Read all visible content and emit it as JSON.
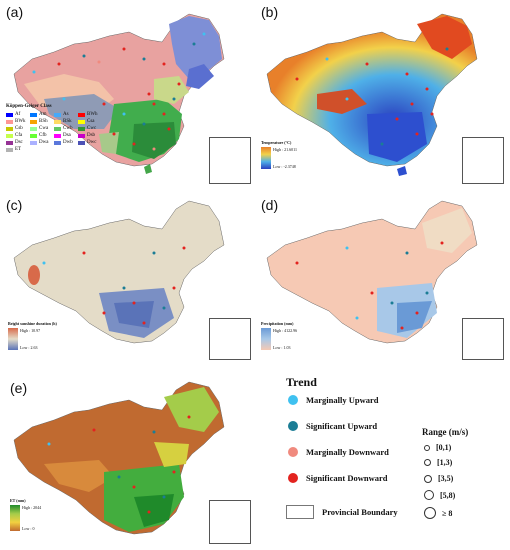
{
  "panels": [
    {
      "label": "(a)",
      "legend_title": "Köppen-Geiger Class",
      "classes": [
        "Af",
        "Am",
        "As",
        "BWh",
        "BWk",
        "BSh",
        "BSk",
        "Csa",
        "Csb",
        "Cwa",
        "Cwb",
        "Cwc",
        "Cfa",
        "Cfb",
        "Dsa",
        "Dsb",
        "Dsc",
        "Dwa",
        "Dwb",
        "Dwc",
        "ET"
      ]
    },
    {
      "label": "(b)",
      "cbar_title": "Temperature (°C)",
      "high": "High : 21.6011",
      "low": "Low : -2.3748"
    },
    {
      "label": "(c)",
      "cbar_title": "Bright sunshine duration (h)",
      "high": "High : 10.97",
      "low": "Low : 2.63"
    },
    {
      "label": "(d)",
      "cbar_title": "Precipitation (mm)",
      "high": "High : 4122.96",
      "low": "Low : 1.03"
    },
    {
      "label": "(e)",
      "cbar_title": "ET (mm)",
      "high": "High : 2044",
      "low": "Low : 0"
    }
  ],
  "legend": {
    "trend_title": "Trend",
    "trend_items": [
      {
        "label": "Marginally Upward",
        "color": "#3fc1f0"
      },
      {
        "label": "Significant Upward",
        "color": "#1b7d95"
      },
      {
        "label": "Marginally Downward",
        "color": "#f08a7e"
      },
      {
        "label": "Significant Downward",
        "color": "#e3231f"
      }
    ],
    "range_title": "Range (m/s)",
    "range_items": [
      "[0,1)",
      "[1,3)",
      "[3,5)",
      "[5,8)",
      "≥ 8"
    ],
    "boundary_label": "Provincial Boundary"
  }
}
